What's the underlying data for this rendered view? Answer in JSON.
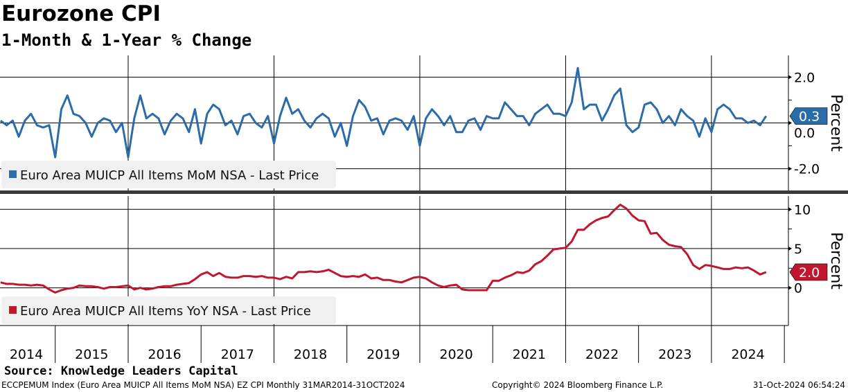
{
  "title": "Eurozone CPI",
  "subtitle": "1-Month & 1-Year % Change",
  "source": "Source: Knowledge Leaders Capital",
  "footer": {
    "left": "ECCPEMUM Index (Euro Area MUICP All Items MoM NSA) EZ CPI  Monthly 31MAR2014-31OCT2024",
    "center": "Copyright© 2024 Bloomberg Finance L.P.",
    "right": "31-Oct-2024 06:54:24"
  },
  "chart_data": [
    {
      "type": "line",
      "start_month": "2014-04",
      "series": [
        {
          "name": "Euro Area MUICP All Items MoM NSA - Last Price",
          "color": "#2b6ca8",
          "last_value_label": "0.3",
          "values": [
            0.1,
            -0.1,
            0.1,
            -0.6,
            0.1,
            0.4,
            -0.1,
            -0.2,
            -0.1,
            -1.5,
            0.6,
            1.2,
            0.4,
            0.3,
            0.0,
            -0.6,
            0.0,
            0.2,
            0.1,
            -0.4,
            0.0,
            -1.5,
            0.2,
            1.2,
            0.2,
            0.4,
            0.2,
            -0.5,
            0.1,
            0.4,
            0.2,
            -0.4,
            0.6,
            -0.9,
            0.4,
            0.8,
            0.6,
            -0.1,
            0.1,
            -0.5,
            0.3,
            0.4,
            0.0,
            -0.2,
            0.3,
            -0.9,
            0.3,
            1.1,
            0.4,
            0.6,
            0.1,
            -0.2,
            0.2,
            0.4,
            0.2,
            -0.6,
            0.0,
            -1.0,
            0.3,
            1.0,
            0.7,
            0.1,
            0.2,
            -0.5,
            0.1,
            0.2,
            0.1,
            -0.3,
            0.3,
            -1.0,
            0.2,
            0.6,
            0.3,
            -0.1,
            0.3,
            -0.4,
            -0.4,
            0.1,
            0.2,
            -0.3,
            0.3,
            0.2,
            0.2,
            0.9,
            0.6,
            0.3,
            0.3,
            -0.1,
            0.4,
            0.6,
            0.8,
            0.4,
            0.4,
            0.3,
            0.9,
            2.4,
            0.6,
            0.8,
            0.8,
            0.1,
            0.6,
            1.2,
            1.5,
            -0.1,
            -0.4,
            -0.2,
            0.8,
            0.9,
            0.6,
            0.0,
            0.3,
            -0.1,
            0.6,
            0.3,
            0.1,
            -0.6,
            0.2,
            -0.4,
            0.6,
            0.8,
            0.6,
            0.2,
            0.2,
            0.0,
            0.1,
            -0.1,
            0.3
          ]
        }
      ],
      "ylabel": "Percent",
      "yticks": [
        "2.0",
        "0.0",
        "-2.0"
      ],
      "ytick_values": [
        2,
        0,
        -2
      ],
      "ylim": [
        -2.95,
        2.95
      ]
    },
    {
      "type": "line",
      "start_month": "2014-04",
      "series": [
        {
          "name": "Euro Area MUICP All Items YoY NSA - Last Price",
          "color": "#c0172e",
          "last_value_label": "2.0",
          "values": [
            0.7,
            0.5,
            0.5,
            0.4,
            0.4,
            0.3,
            0.4,
            0.3,
            -0.2,
            -0.6,
            -0.3,
            -0.1,
            0.0,
            0.3,
            0.2,
            0.2,
            0.1,
            -0.1,
            0.1,
            0.1,
            0.2,
            0.3,
            -0.2,
            0.0,
            -0.2,
            -0.1,
            0.1,
            0.2,
            0.2,
            0.4,
            0.5,
            0.6,
            1.1,
            1.7,
            2.0,
            1.5,
            1.9,
            1.4,
            1.3,
            1.3,
            1.5,
            1.5,
            1.4,
            1.5,
            1.3,
            1.3,
            1.1,
            1.4,
            1.2,
            2.0,
            2.0,
            2.1,
            2.0,
            2.1,
            2.3,
            1.9,
            1.5,
            1.4,
            1.5,
            1.4,
            1.7,
            1.2,
            1.3,
            1.0,
            1.0,
            0.8,
            0.7,
            1.0,
            1.3,
            1.4,
            1.2,
            0.7,
            0.3,
            0.1,
            0.3,
            0.4,
            -0.2,
            -0.3,
            -0.3,
            -0.3,
            -0.3,
            0.9,
            0.9,
            1.3,
            1.6,
            2.0,
            1.9,
            2.2,
            3.0,
            3.4,
            4.1,
            4.9,
            5.0,
            5.1,
            5.9,
            7.4,
            7.4,
            8.1,
            8.6,
            8.9,
            9.1,
            9.9,
            10.6,
            10.1,
            9.2,
            8.6,
            8.5,
            6.9,
            7.0,
            6.1,
            5.5,
            5.3,
            5.2,
            4.3,
            2.9,
            2.4,
            2.9,
            2.8,
            2.6,
            2.4,
            2.4,
            2.6,
            2.5,
            2.6,
            2.2,
            1.7,
            2.0
          ]
        }
      ],
      "ylabel": "Percent",
      "yticks": [
        "10",
        "5",
        "0"
      ],
      "ytick_values": [
        10,
        5,
        0
      ],
      "ylim": [
        -4.8,
        11.7
      ]
    }
  ],
  "xaxis": {
    "years": [
      "2014",
      "2015",
      "2016",
      "2017",
      "2018",
      "2019",
      "2020",
      "2021",
      "2022",
      "2023",
      "2024"
    ],
    "gridline_years": [
      2016,
      2018,
      2020,
      2022,
      2024
    ]
  }
}
